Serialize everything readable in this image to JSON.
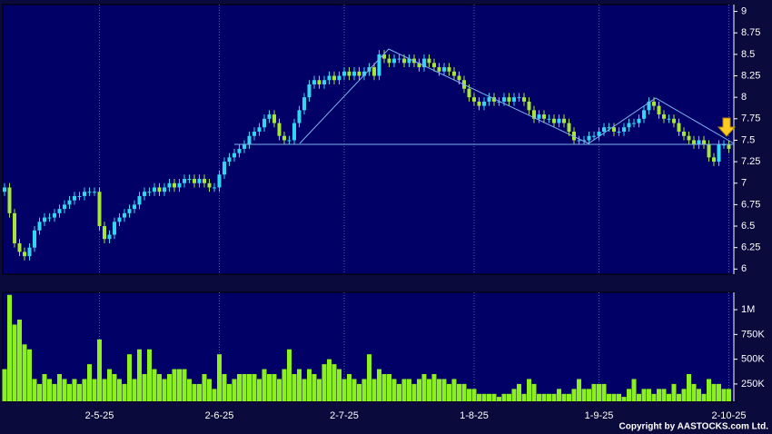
{
  "copyright": "Copyright by AASTOCKS.com Ltd.",
  "chart_data": [
    {
      "type": "candlestick",
      "up_color": "#33d6f2",
      "down_color": "#a6e63a",
      "ylim": [
        5.94,
        9.08
      ],
      "yticks": [
        6,
        6.25,
        6.5,
        6.75,
        7,
        7.25,
        7.5,
        7.75,
        8,
        8.25,
        8.5,
        8.75,
        9
      ],
      "open": [
        6.9,
        6.95,
        6.65,
        6.3,
        6.2,
        6.15,
        6.25,
        6.45,
        6.55,
        6.6,
        6.6,
        6.65,
        6.7,
        6.75,
        6.8,
        6.85,
        6.85,
        6.9,
        6.9,
        6.9,
        6.5,
        6.35,
        6.4,
        6.55,
        6.6,
        6.65,
        6.7,
        6.75,
        6.85,
        6.9,
        6.9,
        6.95,
        6.9,
        6.95,
        7.0,
        6.95,
        7.0,
        7.05,
        7.05,
        7.0,
        7.05,
        7.0,
        6.95,
        6.95,
        7.1,
        7.25,
        7.3,
        7.35,
        7.4,
        7.45,
        7.55,
        7.6,
        7.65,
        7.75,
        7.8,
        7.7,
        7.55,
        7.5,
        7.5,
        7.7,
        7.85,
        8.0,
        8.15,
        8.2,
        8.15,
        8.2,
        8.25,
        8.2,
        8.25,
        8.3,
        8.25,
        8.3,
        8.25,
        8.3,
        8.35,
        8.25,
        8.5,
        8.45,
        8.4,
        8.45,
        8.45,
        8.4,
        8.45,
        8.4,
        8.35,
        8.45,
        8.4,
        8.35,
        8.3,
        8.35,
        8.3,
        8.25,
        8.2,
        8.1,
        8.0,
        7.95,
        7.9,
        7.95,
        8.0,
        7.95,
        7.95,
        8.0,
        7.95,
        8.0,
        8.0,
        7.95,
        7.85,
        7.75,
        7.8,
        7.75,
        7.75,
        7.7,
        7.75,
        7.7,
        7.6,
        7.5,
        7.5,
        7.5,
        7.55,
        7.55,
        7.6,
        7.65,
        7.65,
        7.6,
        7.6,
        7.65,
        7.7,
        7.7,
        7.75,
        7.85,
        7.95,
        7.9,
        7.8,
        7.75,
        7.75,
        7.7,
        7.6,
        7.55,
        7.5,
        7.45,
        7.5,
        7.45,
        7.3,
        7.25,
        7.45,
        7.45
      ],
      "high": [
        7.0,
        7.0,
        6.7,
        6.35,
        6.25,
        6.3,
        6.5,
        6.6,
        6.65,
        6.65,
        6.7,
        6.75,
        6.8,
        6.85,
        6.9,
        6.9,
        6.95,
        6.95,
        6.95,
        6.95,
        6.55,
        6.45,
        6.6,
        6.65,
        6.7,
        6.75,
        6.8,
        6.9,
        6.95,
        6.95,
        7.0,
        7.0,
        7.0,
        7.05,
        7.05,
        7.05,
        7.1,
        7.1,
        7.1,
        7.1,
        7.1,
        7.05,
        7.0,
        7.15,
        7.3,
        7.35,
        7.4,
        7.45,
        7.5,
        7.6,
        7.65,
        7.7,
        7.8,
        7.85,
        7.85,
        7.75,
        7.6,
        7.55,
        7.75,
        7.9,
        8.05,
        8.2,
        8.25,
        8.25,
        8.25,
        8.3,
        8.3,
        8.3,
        8.35,
        8.35,
        8.35,
        8.35,
        8.35,
        8.4,
        8.4,
        8.55,
        8.55,
        8.5,
        8.5,
        8.5,
        8.5,
        8.5,
        8.5,
        8.45,
        8.5,
        8.5,
        8.45,
        8.4,
        8.4,
        8.4,
        8.35,
        8.3,
        8.25,
        8.15,
        8.05,
        8.0,
        8.0,
        8.05,
        8.05,
        8.0,
        8.05,
        8.05,
        8.05,
        8.05,
        8.05,
        8.0,
        7.9,
        7.85,
        7.85,
        7.8,
        7.8,
        7.8,
        7.8,
        7.75,
        7.65,
        7.55,
        7.55,
        7.6,
        7.6,
        7.65,
        7.7,
        7.7,
        7.7,
        7.65,
        7.7,
        7.75,
        7.75,
        7.8,
        7.9,
        8.0,
        8.0,
        7.95,
        7.85,
        7.8,
        7.8,
        7.75,
        7.65,
        7.6,
        7.55,
        7.55,
        7.55,
        7.5,
        7.35,
        7.5,
        7.5,
        7.5
      ],
      "low": [
        6.85,
        6.6,
        6.25,
        6.15,
        6.1,
        6.1,
        6.2,
        6.4,
        6.5,
        6.55,
        6.55,
        6.6,
        6.65,
        6.7,
        6.75,
        6.8,
        6.8,
        6.85,
        6.85,
        6.45,
        6.3,
        6.3,
        6.35,
        6.5,
        6.55,
        6.6,
        6.65,
        6.7,
        6.8,
        6.85,
        6.85,
        6.85,
        6.85,
        6.9,
        6.9,
        6.9,
        6.95,
        7.0,
        6.95,
        6.95,
        6.95,
        6.9,
        6.9,
        6.9,
        7.05,
        7.2,
        7.25,
        7.3,
        7.35,
        7.4,
        7.5,
        7.55,
        7.6,
        7.7,
        7.65,
        7.5,
        7.45,
        7.45,
        7.45,
        7.65,
        7.8,
        7.95,
        8.1,
        8.1,
        8.1,
        8.15,
        8.15,
        8.15,
        8.2,
        8.2,
        8.2,
        8.2,
        8.2,
        8.25,
        8.2,
        8.2,
        8.4,
        8.35,
        8.35,
        8.4,
        8.35,
        8.35,
        8.35,
        8.3,
        8.3,
        8.35,
        8.3,
        8.25,
        8.25,
        8.25,
        8.2,
        8.15,
        8.05,
        7.95,
        7.9,
        7.85,
        7.85,
        7.9,
        7.9,
        7.9,
        7.9,
        7.9,
        7.9,
        7.95,
        7.9,
        7.8,
        7.7,
        7.7,
        7.7,
        7.7,
        7.65,
        7.65,
        7.65,
        7.55,
        7.45,
        7.45,
        7.45,
        7.45,
        7.5,
        7.5,
        7.55,
        7.6,
        7.55,
        7.55,
        7.55,
        7.6,
        7.65,
        7.65,
        7.7,
        7.8,
        7.85,
        7.75,
        7.7,
        7.7,
        7.65,
        7.55,
        7.5,
        7.45,
        7.4,
        7.4,
        7.4,
        7.25,
        7.2,
        7.2,
        7.4,
        7.35
      ],
      "close": [
        6.95,
        6.65,
        6.3,
        6.2,
        6.15,
        6.25,
        6.45,
        6.55,
        6.6,
        6.6,
        6.65,
        6.7,
        6.75,
        6.8,
        6.85,
        6.85,
        6.9,
        6.9,
        6.9,
        6.5,
        6.35,
        6.4,
        6.55,
        6.6,
        6.65,
        6.7,
        6.75,
        6.85,
        6.9,
        6.9,
        6.95,
        6.9,
        6.95,
        7.0,
        6.95,
        7.0,
        7.05,
        7.05,
        7.0,
        7.05,
        7.0,
        6.95,
        6.95,
        7.1,
        7.25,
        7.3,
        7.35,
        7.4,
        7.45,
        7.55,
        7.6,
        7.65,
        7.75,
        7.8,
        7.7,
        7.55,
        7.5,
        7.5,
        7.7,
        7.85,
        8.0,
        8.15,
        8.2,
        8.15,
        8.2,
        8.25,
        8.2,
        8.25,
        8.3,
        8.25,
        8.3,
        8.25,
        8.3,
        8.35,
        8.25,
        8.5,
        8.45,
        8.4,
        8.45,
        8.45,
        8.4,
        8.45,
        8.4,
        8.35,
        8.45,
        8.4,
        8.35,
        8.3,
        8.35,
        8.3,
        8.25,
        8.2,
        8.1,
        8.0,
        7.95,
        7.9,
        7.95,
        8.0,
        7.95,
        7.95,
        8.0,
        7.95,
        8.0,
        8.0,
        7.95,
        7.85,
        7.75,
        7.8,
        7.75,
        7.75,
        7.7,
        7.75,
        7.7,
        7.6,
        7.5,
        7.5,
        7.5,
        7.55,
        7.55,
        7.6,
        7.65,
        7.65,
        7.6,
        7.6,
        7.65,
        7.7,
        7.7,
        7.75,
        7.85,
        7.95,
        7.9,
        7.8,
        7.75,
        7.75,
        7.7,
        7.6,
        7.55,
        7.5,
        7.45,
        7.5,
        7.45,
        7.3,
        7.25,
        7.45,
        7.45,
        7.4
      ]
    },
    {
      "type": "bar",
      "color": "#8cf01e",
      "ylim": [
        75000,
        1175000
      ],
      "yticks": [
        {
          "value": 250000,
          "label": "250K"
        },
        {
          "value": 500000,
          "label": "500K"
        },
        {
          "value": 750000,
          "label": "750K"
        },
        {
          "value": 1000000,
          "label": "1M"
        }
      ],
      "categories": [
        null,
        null,
        null,
        null,
        null,
        null,
        null,
        null,
        null,
        null,
        null,
        null,
        null,
        null,
        null,
        null,
        null,
        null,
        null,
        "2-5-25",
        null,
        null,
        null,
        null,
        null,
        null,
        null,
        null,
        null,
        null,
        null,
        null,
        null,
        null,
        null,
        null,
        null,
        null,
        null,
        null,
        null,
        null,
        null,
        "2-6-25",
        null,
        null,
        null,
        null,
        null,
        null,
        null,
        null,
        null,
        null,
        null,
        null,
        null,
        null,
        null,
        null,
        null,
        null,
        null,
        null,
        null,
        null,
        null,
        null,
        "2-7-25",
        null,
        null,
        null,
        null,
        null,
        null,
        null,
        null,
        null,
        null,
        null,
        null,
        null,
        null,
        null,
        null,
        null,
        null,
        null,
        null,
        null,
        null,
        null,
        null,
        null,
        "1-8-25",
        null,
        null,
        null,
        null,
        null,
        null,
        null,
        null,
        null,
        null,
        null,
        null,
        null,
        null,
        null,
        null,
        null,
        null,
        null,
        null,
        null,
        null,
        null,
        null,
        "1-9-25",
        null,
        null,
        null,
        null,
        null,
        null,
        null,
        null,
        null,
        null,
        null,
        null,
        null,
        null,
        null,
        null,
        null,
        null,
        null,
        null,
        null,
        null,
        null,
        null,
        null,
        "2-10-25"
      ],
      "values": [
        400000,
        1150000,
        850000,
        900000,
        650000,
        600000,
        300000,
        250000,
        350000,
        300000,
        250000,
        350000,
        300000,
        250000,
        300000,
        250000,
        300000,
        450000,
        300000,
        700000,
        300000,
        400000,
        350000,
        300000,
        250000,
        550000,
        300000,
        600000,
        350000,
        600000,
        400000,
        350000,
        300000,
        350000,
        400000,
        400000,
        400000,
        300000,
        250000,
        250000,
        350000,
        300000,
        200000,
        550000,
        350000,
        250000,
        300000,
        350000,
        350000,
        350000,
        350000,
        300000,
        400000,
        350000,
        350000,
        300000,
        400000,
        600000,
        350000,
        400000,
        300000,
        400000,
        350000,
        300000,
        450000,
        500000,
        450000,
        400000,
        300000,
        350000,
        300000,
        250000,
        300000,
        550000,
        300000,
        400000,
        350000,
        350000,
        300000,
        250000,
        300000,
        300000,
        250000,
        300000,
        350000,
        300000,
        350000,
        300000,
        300000,
        250000,
        300000,
        250000,
        250000,
        200000,
        200000,
        150000,
        150000,
        150000,
        150000,
        120000,
        150000,
        150000,
        200000,
        250000,
        150000,
        300000,
        250000,
        150000,
        150000,
        150000,
        150000,
        200000,
        150000,
        150000,
        200000,
        300000,
        200000,
        200000,
        250000,
        250000,
        250000,
        150000,
        150000,
        150000,
        120000,
        200000,
        300000,
        150000,
        200000,
        200000,
        150000,
        200000,
        200000,
        150000,
        250000,
        150000,
        200000,
        350000,
        250000,
        200000,
        150000,
        300000,
        250000,
        250000,
        200000,
        200000
      ]
    }
  ]
}
